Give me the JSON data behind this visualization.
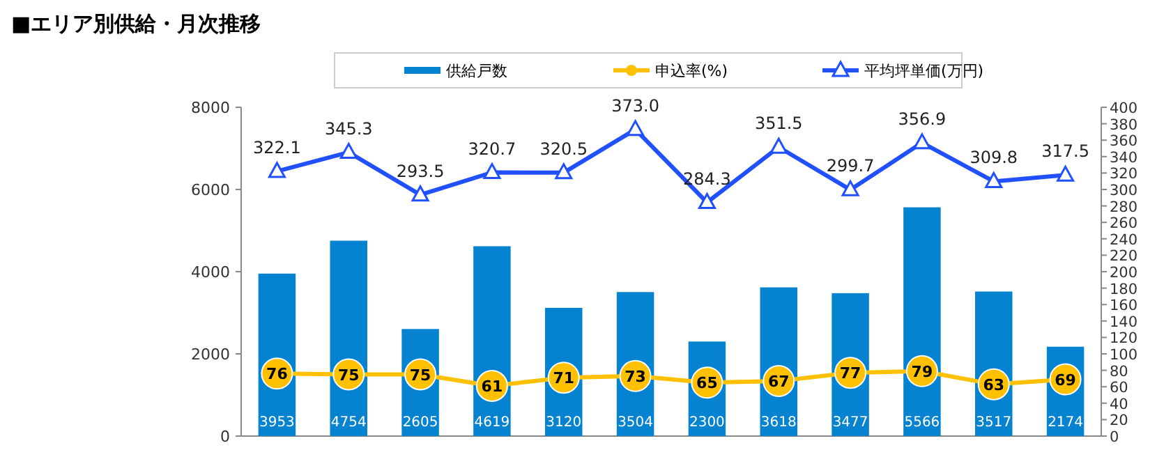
{
  "chart_data": {
    "type": "bar",
    "title": "■エリア別供給・月次推移",
    "categories": [
      null,
      null,
      null,
      null,
      null,
      null,
      null,
      null,
      null,
      null,
      null,
      null
    ],
    "series": [
      {
        "name": "供給戸数",
        "color": "#0683d0",
        "values": [
          3953,
          4754,
          2605,
          4619,
          3120,
          3504,
          2300,
          3618,
          3477,
          5566,
          3517,
          2174
        ]
      },
      {
        "name": "申込率(%)",
        "type": "line",
        "axis": "y2",
        "marker": "circle",
        "color": "#ffc000",
        "values": [
          76,
          75,
          75,
          61,
          71,
          73,
          65,
          67,
          77,
          79,
          63,
          69
        ]
      },
      {
        "name": "平均坪単価(万円)",
        "type": "line",
        "axis": "y2",
        "marker": "triangle",
        "color": "#2050ff",
        "values": [
          322.1,
          345.3,
          293.5,
          320.7,
          320.5,
          373.0,
          284.3,
          351.5,
          299.7,
          356.9,
          309.8,
          317.5
        ],
        "value_labels": [
          "322.1",
          "345.3",
          "293.5",
          "320.7",
          "320.5",
          "373.0",
          "284.3",
          "351.5",
          "299.7",
          "356.9",
          "309.8",
          "317.5"
        ]
      }
    ],
    "ylim": [
      0,
      8000
    ],
    "yticks": [
      0,
      2000,
      4000,
      6000,
      8000
    ],
    "y2lim": [
      0,
      400
    ],
    "y2ticks": [
      0,
      20,
      40,
      60,
      80,
      100,
      120,
      140,
      160,
      180,
      200,
      220,
      240,
      260,
      280,
      300,
      320,
      340,
      360,
      380,
      400
    ],
    "data_labels": true,
    "legend": "top"
  }
}
